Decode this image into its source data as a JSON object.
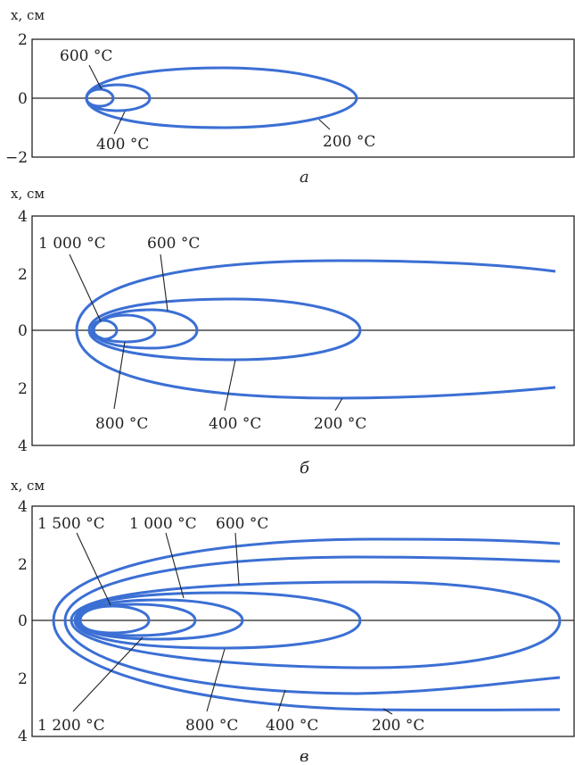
{
  "panels": {
    "a": {
      "axis_label": "x, см",
      "ticks": [
        "2",
        "0",
        "−2"
      ],
      "caption": "а",
      "labels": [
        "600 °C",
        "400 °C",
        "200 °C"
      ]
    },
    "b": {
      "axis_label": "x, см",
      "ticks": [
        "4",
        "2",
        "0",
        "2",
        "4"
      ],
      "caption": "б",
      "labels": [
        "1 000 °C",
        "600 °C",
        "800 °C",
        "400 °C",
        "200 °C"
      ]
    },
    "c": {
      "axis_label": "x, см",
      "ticks": [
        "4",
        "2",
        "0",
        "2",
        "4"
      ],
      "caption": "в",
      "labels": [
        "1 500 °C",
        "1 000 °C",
        "600 °C",
        "1 200 °C",
        "800 °C",
        "400 °C",
        "200 °C"
      ]
    }
  },
  "colors": {
    "isotherm": "#3b6fd4",
    "ink": "#222222"
  }
}
